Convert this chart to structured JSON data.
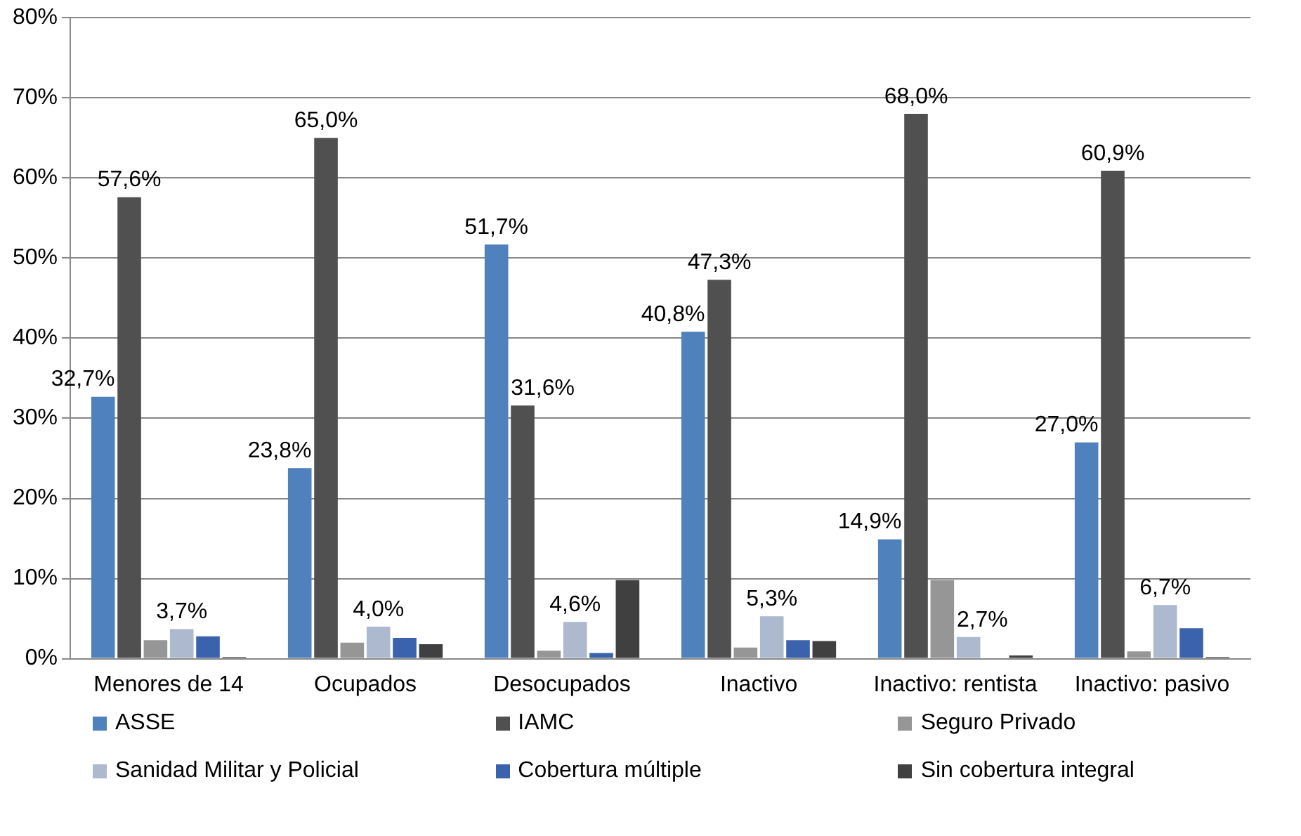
{
  "chart_data": {
    "type": "bar",
    "categories": [
      "Menores de 14",
      "Ocupados",
      "Desocupados",
      "Inactivo",
      "Inactivo: rentista",
      "Inactivo: pasivo"
    ],
    "series": [
      {
        "name": "ASSE",
        "color": "#4f81bd",
        "values": [
          32.7,
          23.8,
          51.7,
          40.8,
          14.9,
          27.0
        ],
        "value_labels": [
          "32,7%",
          "23,8%",
          "51,7%",
          "40,8%",
          "14,9%",
          "27,0%"
        ]
      },
      {
        "name": "IAMC",
        "color": "#505050",
        "values": [
          57.6,
          65.0,
          31.6,
          47.3,
          68.0,
          60.9
        ],
        "value_labels": [
          "57,6%",
          "65,0%",
          "31,6%",
          "47,3%",
          "68,0%",
          "60,9%"
        ]
      },
      {
        "name": "Seguro Privado",
        "color": "#969696",
        "values": [
          2.3,
          2.0,
          1.0,
          1.4,
          9.8,
          0.9
        ]
      },
      {
        "name": "Sanidad Militar y Policial",
        "color": "#adb9ce",
        "values": [
          3.7,
          4.0,
          4.6,
          5.3,
          2.7,
          6.7
        ],
        "value_labels": [
          "3,7%",
          "4,0%",
          "4,6%",
          "5,3%",
          "2,7%",
          "6,7%"
        ]
      },
      {
        "name": "Cobertura múltiple",
        "color": "#3a62ad",
        "values": [
          2.8,
          2.6,
          0.7,
          2.3,
          0,
          3.8
        ]
      },
      {
        "name": "Sin cobertura integral",
        "color": "#404040",
        "values": [
          0.2,
          1.8,
          9.8,
          2.2,
          0.4,
          0.2
        ]
      }
    ],
    "ylim": [
      0,
      80
    ],
    "yticks": [
      {
        "value": 0,
        "label": "0%"
      },
      {
        "value": 10,
        "label": "10%"
      },
      {
        "value": 20,
        "label": "20%"
      },
      {
        "value": 30,
        "label": "30%"
      },
      {
        "value": 40,
        "label": "40%"
      },
      {
        "value": 50,
        "label": "50%"
      },
      {
        "value": 60,
        "label": "60%"
      },
      {
        "value": 70,
        "label": "70%"
      },
      {
        "value": 80,
        "label": "80%"
      }
    ],
    "grid": "y",
    "legend": "bottom"
  }
}
